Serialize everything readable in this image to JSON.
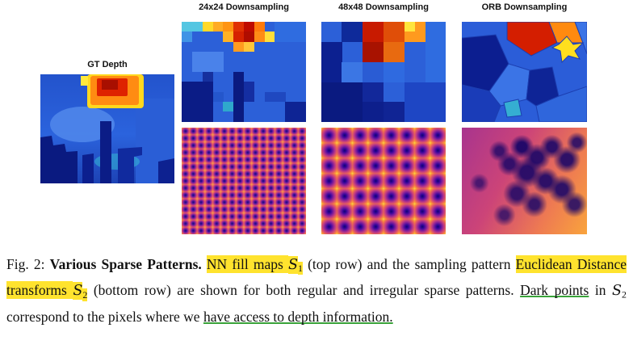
{
  "figure": {
    "headers": {
      "gt": "GT Depth",
      "ds24": "24x24 Downsampling",
      "ds48": "48x48 Downsampling",
      "orb": "ORB Downsampling"
    }
  },
  "caption": {
    "fig_label": "Fig. 2:",
    "segments": [
      {
        "text": "Fig. 2: ",
        "style": "",
        "name": "caption-fig-number"
      },
      {
        "text": "Various Sparse Patterns. ",
        "style": "bold",
        "name": "caption-title"
      },
      {
        "text": "NN fill maps ",
        "style": "hl",
        "name": "caption-highlight-1"
      },
      {
        "text": "S",
        "style": "hl math",
        "name": "caption-math-s1"
      },
      {
        "text": "1",
        "style": "hl sub",
        "name": "caption-math-s1-sub"
      },
      {
        "text": " (top row) and the sampling pattern ",
        "style": "",
        "name": "caption-text"
      },
      {
        "text": "Euclidean Distance transforms ",
        "style": "hl",
        "name": "caption-highlight-2"
      },
      {
        "text": "S",
        "style": "hl math",
        "name": "caption-math-s2"
      },
      {
        "text": "2",
        "style": "hl sub",
        "name": "caption-math-s2-sub"
      },
      {
        "text": " (bottom row) are shown for both regular and irregular sparse patterns. ",
        "style": "",
        "name": "caption-text"
      },
      {
        "text": "Dark points",
        "style": "ul",
        "name": "caption-underline-1"
      },
      {
        "text": " in ",
        "style": "",
        "name": "caption-text"
      },
      {
        "text": "S",
        "style": "math",
        "name": "caption-math-s2b"
      },
      {
        "text": "2",
        "style": "sub",
        "name": "caption-math-s2b-sub"
      },
      {
        "text": " correspond to the pixels where we ",
        "style": "",
        "name": "caption-text"
      },
      {
        "text": "have access to depth information.",
        "style": "ul",
        "name": "caption-underline-2"
      }
    ]
  },
  "colors": {
    "highlight": "#ffe32e",
    "underline": "#3aa33a"
  }
}
